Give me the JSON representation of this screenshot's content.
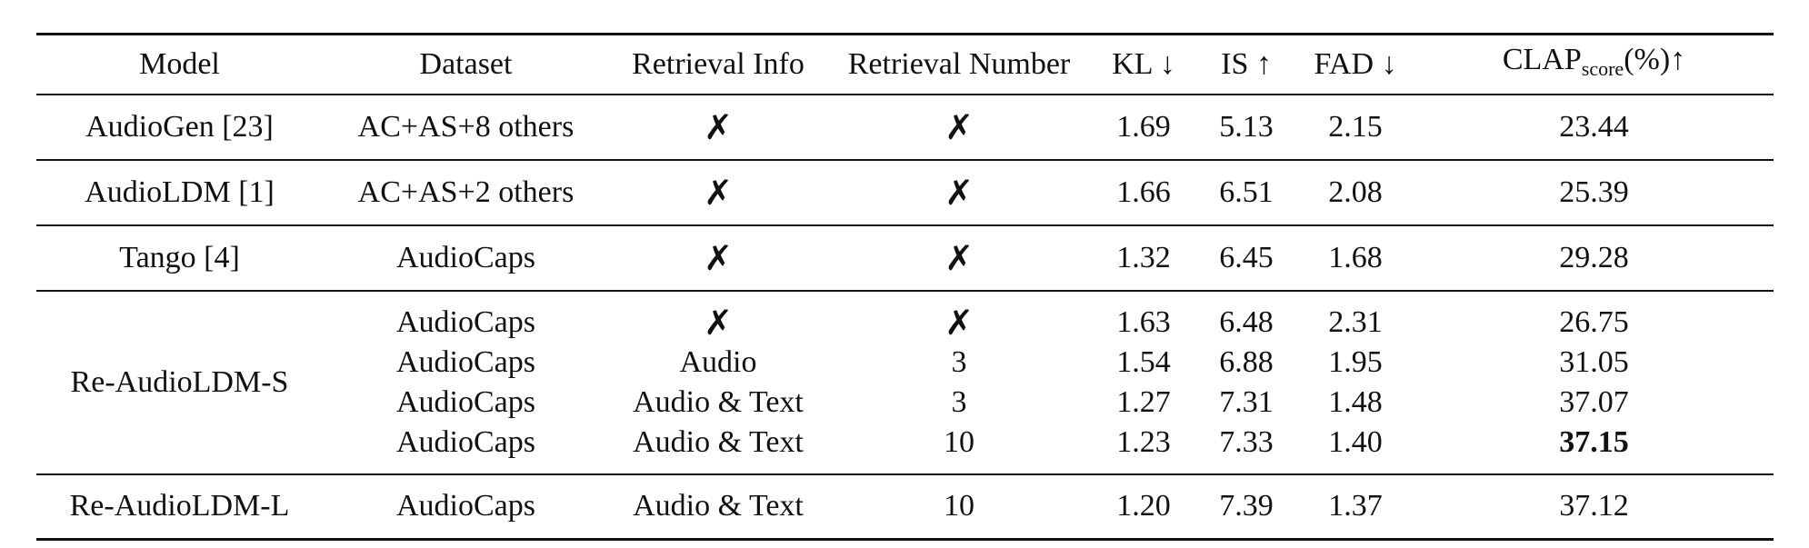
{
  "table": {
    "headers": {
      "model": "Model",
      "dataset": "Dataset",
      "retrieval_info": "Retrieval Info",
      "retrieval_number": "Retrieval Number",
      "kl": "KL ↓",
      "is": "IS ↑",
      "fad": "FAD ↓",
      "clap_main": "CLAP",
      "clap_sub": "score",
      "clap_tail": "(%)↑"
    },
    "cross_symbol": "✗",
    "rows": [
      {
        "model": "AudioGen [23]",
        "dataset": "AC+AS+8 others",
        "info": "✗",
        "number": "✗",
        "kl": "1.69",
        "is": "5.13",
        "fad": "2.15",
        "clap": "23.44"
      },
      {
        "model": "AudioLDM [1]",
        "dataset": "AC+AS+2 others",
        "info": "✗",
        "number": "✗",
        "kl": "1.66",
        "is": "6.51",
        "fad": "2.08",
        "clap": "25.39"
      },
      {
        "model": "Tango [4]",
        "dataset": "AudioCaps",
        "info": "✗",
        "number": "✗",
        "kl": "1.32",
        "is": "6.45",
        "fad": "1.68",
        "clap": "29.28"
      }
    ],
    "group": {
      "model": "Re-AudioLDM-S",
      "rows": [
        {
          "dataset": "AudioCaps",
          "info": "✗",
          "number": "✗",
          "kl": "1.63",
          "is": "6.48",
          "fad": "2.31",
          "clap": "26.75"
        },
        {
          "dataset": "AudioCaps",
          "info": "Audio",
          "number": "3",
          "kl": "1.54",
          "is": "6.88",
          "fad": "1.95",
          "clap": "31.05"
        },
        {
          "dataset": "AudioCaps",
          "info": "Audio & Text",
          "number": "3",
          "kl": "1.27",
          "is": "7.31",
          "fad": "1.48",
          "clap": "37.07"
        },
        {
          "dataset": "AudioCaps",
          "info": "Audio & Text",
          "number": "10",
          "kl": "1.23",
          "is": "7.33",
          "fad": "1.40",
          "clap": "37.15"
        }
      ]
    },
    "last_row": {
      "model": "Re-AudioLDM-L",
      "dataset": "AudioCaps",
      "info": "Audio & Text",
      "number": "10",
      "kl": "1.20",
      "is": "7.39",
      "fad": "1.37",
      "clap": "37.12"
    }
  }
}
